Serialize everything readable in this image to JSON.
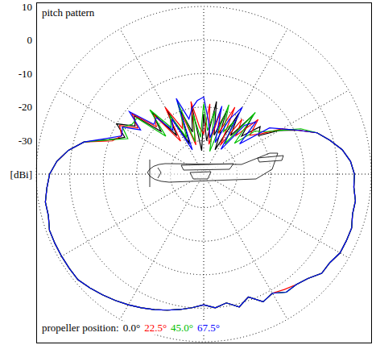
{
  "chart_data": {
    "type": "polar_line",
    "title": "pitch pattern",
    "legend_title": "propeller position:",
    "legend": "bottom left",
    "grid": true,
    "tick_labels": "y",
    "xlim": [
      0,
      360
    ],
    "xticks": [
      0,
      30,
      60,
      90,
      120,
      150,
      180,
      210,
      240,
      270,
      300,
      330
    ],
    "ylim": [
      -40,
      10
    ],
    "yticks": [
      {
        "value": -40,
        "label": "[dBi]"
      },
      -30,
      -20,
      -10,
      0,
      10
    ],
    "x": [
      0,
      5,
      10,
      15,
      20,
      25,
      30,
      35,
      40,
      45,
      50,
      55,
      60,
      65,
      70,
      75,
      80,
      85,
      90,
      95,
      100,
      105,
      110,
      115,
      120,
      125,
      130,
      135,
      140,
      145,
      150,
      155,
      160,
      165,
      170,
      175,
      180,
      185,
      190,
      195,
      200,
      205,
      210,
      215,
      220,
      225,
      230,
      235,
      240,
      245,
      250,
      255,
      260,
      265,
      270,
      275,
      280,
      285,
      290,
      295,
      300,
      305,
      310,
      315,
      320,
      325,
      330,
      335,
      340,
      345,
      350,
      355
    ],
    "series": [
      {
        "name": "0.0°",
        "color": "#000000",
        "values": [
          -22,
          -30,
          -18,
          -28,
          -20,
          -32,
          -19,
          -26,
          -17,
          -24,
          -18,
          -20,
          -14,
          -9,
          -4,
          -1,
          2,
          4,
          5,
          5,
          6,
          6,
          7,
          7,
          7,
          6,
          6,
          4,
          3,
          3,
          1,
          2,
          -1,
          1,
          -1,
          0,
          -1,
          0,
          1,
          2,
          3,
          4,
          5,
          6,
          7,
          8,
          9,
          9,
          9,
          9,
          9,
          8,
          8,
          7,
          6,
          4,
          1,
          -3,
          -10,
          -14,
          -10,
          -15,
          -13,
          -22,
          -16,
          -26,
          -18,
          -30,
          -20,
          -27,
          -19,
          -33
        ]
      },
      {
        "name": "22.5°",
        "color": "#ff0000",
        "values": [
          -28,
          -19,
          -31,
          -21,
          -27,
          -18,
          -30,
          -20,
          -25,
          -17,
          -22,
          -19,
          -13,
          -9,
          -4,
          -1,
          2,
          4,
          5,
          5,
          6,
          6,
          7,
          7,
          7,
          6,
          6,
          4,
          3,
          2,
          1,
          2,
          -1,
          1,
          -1,
          0,
          -1,
          0,
          1,
          2,
          3,
          4,
          5,
          6,
          7,
          8,
          9,
          9,
          9,
          9,
          9,
          8,
          8,
          7,
          6,
          4,
          1,
          -3,
          -11,
          -13,
          -11,
          -16,
          -12,
          -20,
          -17,
          -28,
          -17,
          -25,
          -21,
          -31,
          -18,
          -26
        ]
      },
      {
        "name": "45.0°",
        "color": "#00c000",
        "values": [
          -19,
          -27,
          -21,
          -33,
          -18,
          -26,
          -22,
          -29,
          -16,
          -27,
          -20,
          -18,
          -14,
          -8,
          -4,
          -1,
          2,
          4,
          5,
          5,
          6,
          6,
          7,
          7,
          7,
          6,
          6,
          4,
          3,
          3,
          1,
          2,
          -1,
          1,
          -1,
          0,
          -1,
          0,
          1,
          2,
          3,
          4,
          5,
          6,
          7,
          8,
          9,
          9,
          9,
          9,
          9,
          8,
          8,
          7,
          6,
          4,
          1,
          -3,
          -10,
          -15,
          -12,
          -14,
          -14,
          -24,
          -15,
          -23,
          -20,
          -28,
          -17,
          -30,
          -22,
          -29
        ]
      },
      {
        "name": "67.5°",
        "color": "#0000ff",
        "values": [
          -17,
          -24,
          -29,
          -19,
          -30,
          -22,
          -17,
          -31,
          -21,
          -18,
          -26,
          -16,
          -13,
          -9,
          -4,
          -1,
          2,
          4,
          5,
          5,
          6,
          6,
          7,
          7,
          7,
          6,
          6,
          4,
          3,
          3,
          1,
          2,
          -1,
          1,
          -1,
          0,
          -1,
          0,
          1,
          2,
          3,
          4,
          5,
          6,
          7,
          8,
          9,
          9,
          9,
          9,
          9,
          8,
          8,
          7,
          6,
          4,
          1,
          -3,
          -9,
          -13,
          -12,
          -17,
          -11,
          -19,
          -18,
          -24,
          -21,
          -32,
          -16,
          -23,
          -20,
          -18
        ]
      }
    ]
  }
}
